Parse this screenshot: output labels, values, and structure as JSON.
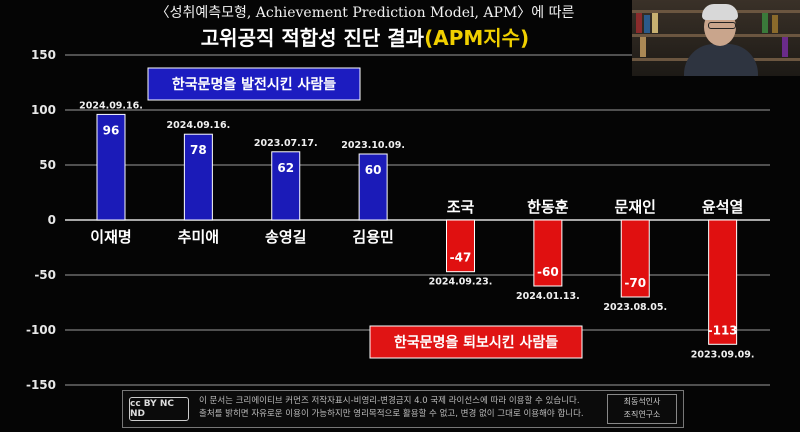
{
  "header": {
    "title_line1": "〈성취예측모형, Achievement Prediction Model, APM〉에 따른",
    "title_line2_main": "고위공직 적합성 진단 결과",
    "title_line2_highlight": "(APM지수)"
  },
  "chart_data": {
    "type": "bar",
    "categories": [
      "이재명",
      "추미애",
      "송영길",
      "김용민",
      "조국",
      "한동훈",
      "문재인",
      "윤석열"
    ],
    "values": [
      96,
      78,
      62,
      60,
      -47,
      -60,
      -70,
      -113
    ],
    "dates": [
      "2024.09.16.",
      "2024.09.16.",
      "2023.07.17.",
      "2023.10.09.",
      "2024.09.23.",
      "2024.01.13.",
      "2023.08.05.",
      "2023.09.09."
    ],
    "value_labels": [
      "96",
      "78",
      "62",
      "60",
      "-47",
      "-60",
      "-70",
      "-113"
    ],
    "colors": [
      "#1b1bb8",
      "#1b1bb8",
      "#1b1bb8",
      "#1b1bb8",
      "#e01010",
      "#e01010",
      "#e01010",
      "#e01010"
    ],
    "ylim": [
      -150,
      150
    ],
    "yticks": [
      "150",
      "100",
      "50",
      "0",
      "-50",
      "-100",
      "-150"
    ],
    "grid": true,
    "annotations": [
      {
        "text": "한국문명을 발전시킨 사람들",
        "color": "#1c1cc0"
      },
      {
        "text": "한국문명을 퇴보시킨 사람들",
        "color": "#e01414"
      }
    ]
  },
  "footer": {
    "cc_badge": "cc BY NC ND",
    "license_line1": "이 문서는 크리에이티브 커먼즈 저작자표시-비영리-변경금지 4.0 국제 라이선스에 따라 이용할 수 있습니다.",
    "license_line2": "출처를 밝히면 자유로운 이용이 가능하지만 영리목적으로 활용할 수 없고, 변경 없이 그대로 이용해야 합니다.",
    "org_line1": "최동석인사",
    "org_line2": "조직연구소"
  }
}
